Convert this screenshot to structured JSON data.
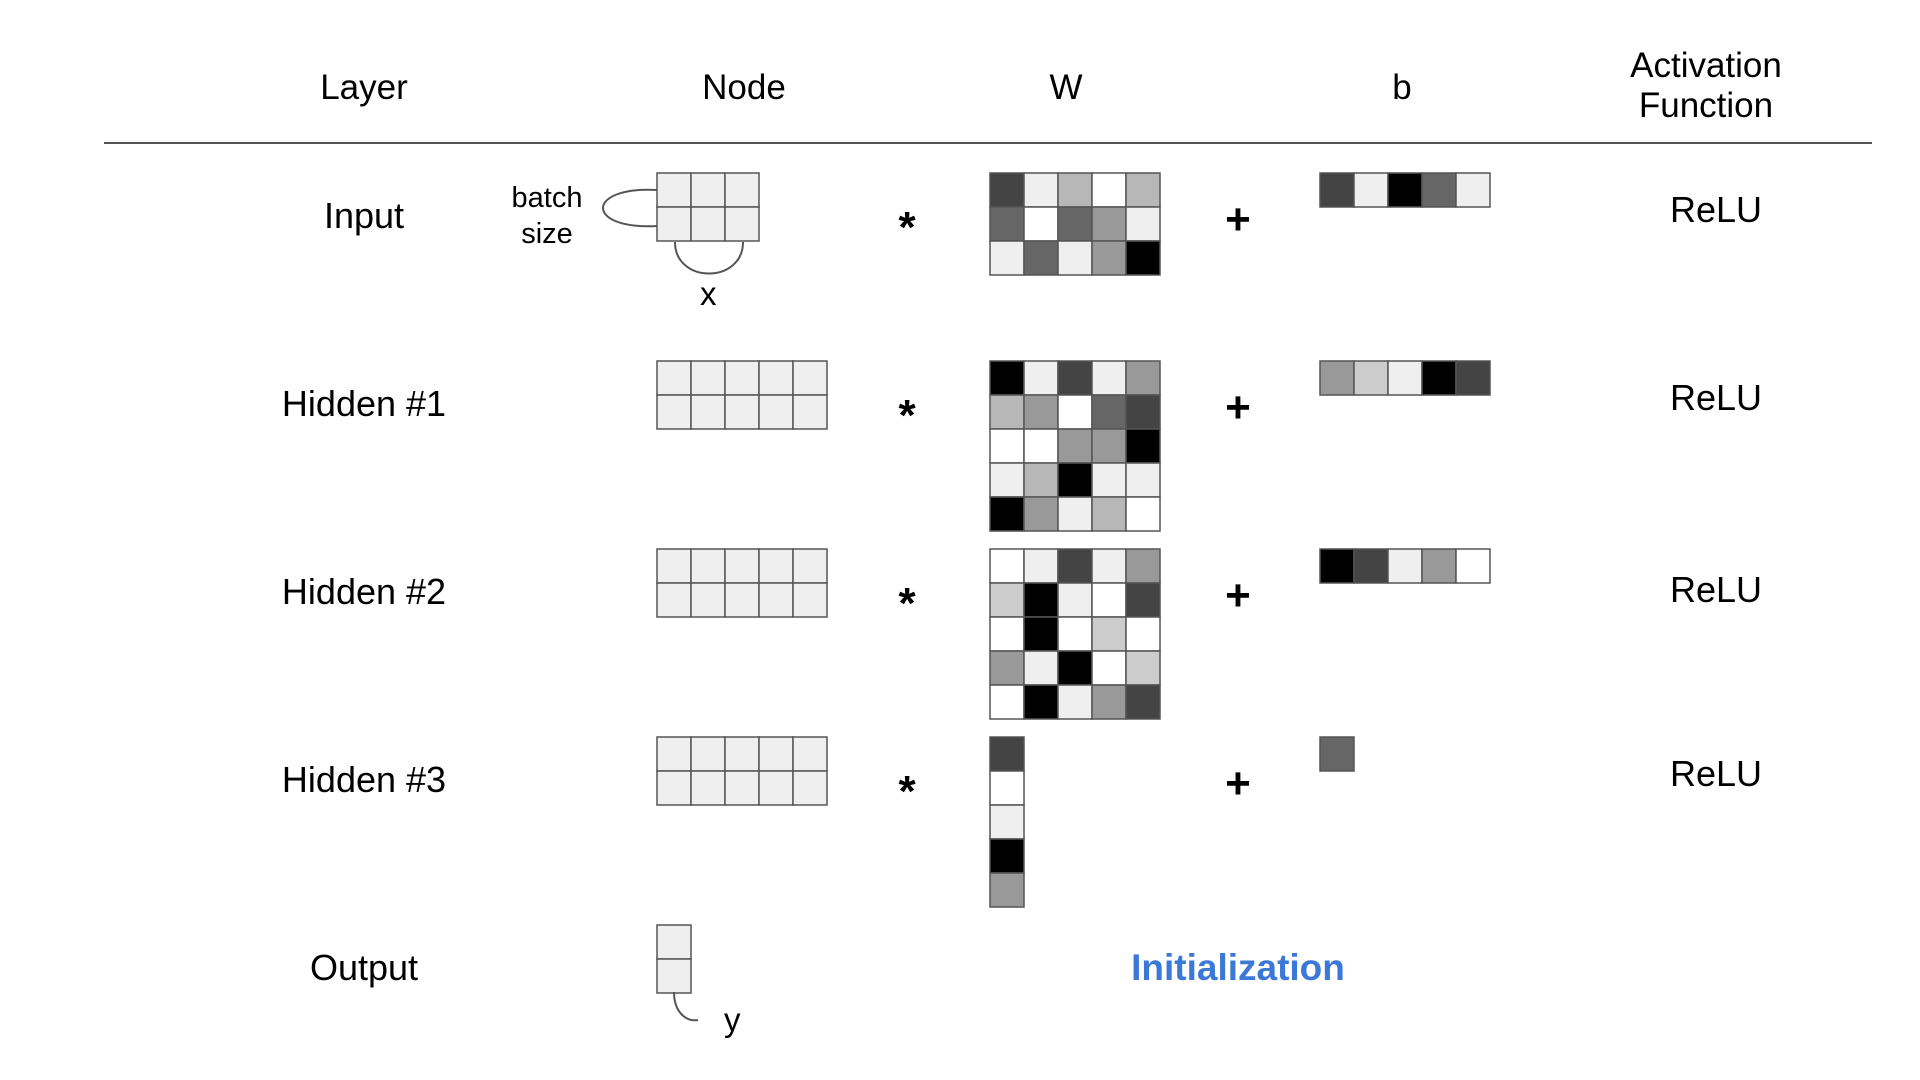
{
  "headers": {
    "layer": "Layer",
    "node": "Node",
    "w": "W",
    "b": "b",
    "activation_line1": "Activation",
    "activation_line2": "Function"
  },
  "input_annotations": {
    "batch_line1": "batch",
    "batch_line2": "size",
    "x": "x"
  },
  "output_annotation": {
    "y": "y"
  },
  "operators": {
    "multiply": "*",
    "add": "+"
  },
  "caption": "Initialization",
  "colors": {
    "caption": "#3b78d8",
    "grid_line": "#555555",
    "node_cell": "#efefef"
  },
  "layers": [
    {
      "name": "Input",
      "activation": "ReLU",
      "node_shape": [
        2,
        3
      ],
      "weights": [
        [
          "#444444",
          "#efefef",
          "#b7b7b7",
          "#ffffff",
          "#b7b7b7"
        ],
        [
          "#666666",
          "#ffffff",
          "#666666",
          "#999999",
          "#efefef"
        ],
        [
          "#efefef",
          "#666666",
          "#efefef",
          "#999999",
          "#000000"
        ]
      ],
      "bias": [
        "#444444",
        "#efefef",
        "#000000",
        "#666666",
        "#efefef"
      ]
    },
    {
      "name": "Hidden #1",
      "activation": "ReLU",
      "node_shape": [
        2,
        5
      ],
      "weights": [
        [
          "#000000",
          "#efefef",
          "#444444",
          "#efefef",
          "#999999"
        ],
        [
          "#b7b7b7",
          "#999999",
          "#ffffff",
          "#666666",
          "#444444"
        ],
        [
          "#ffffff",
          "#ffffff",
          "#999999",
          "#999999",
          "#000000"
        ],
        [
          "#efefef",
          "#b7b7b7",
          "#000000",
          "#efefef",
          "#efefef"
        ],
        [
          "#000000",
          "#999999",
          "#efefef",
          "#b7b7b7",
          "#ffffff"
        ]
      ],
      "bias": [
        "#999999",
        "#cccccc",
        "#efefef",
        "#000000",
        "#444444"
      ]
    },
    {
      "name": "Hidden #2",
      "activation": "ReLU",
      "node_shape": [
        2,
        5
      ],
      "weights": [
        [
          "#ffffff",
          "#efefef",
          "#444444",
          "#efefef",
          "#999999"
        ],
        [
          "#cccccc",
          "#000000",
          "#efefef",
          "#ffffff",
          "#444444"
        ],
        [
          "#ffffff",
          "#000000",
          "#ffffff",
          "#cccccc",
          "#ffffff"
        ],
        [
          "#999999",
          "#efefef",
          "#000000",
          "#ffffff",
          "#cccccc"
        ],
        [
          "#ffffff",
          "#000000",
          "#efefef",
          "#999999",
          "#444444"
        ]
      ],
      "bias": [
        "#000000",
        "#444444",
        "#efefef",
        "#999999",
        "#ffffff"
      ]
    },
    {
      "name": "Hidden #3",
      "activation": "ReLU",
      "node_shape": [
        2,
        5
      ],
      "weights": [
        [
          "#444444"
        ],
        [
          "#ffffff"
        ],
        [
          "#efefef"
        ],
        [
          "#000000"
        ],
        [
          "#999999"
        ]
      ],
      "bias": [
        "#666666"
      ]
    },
    {
      "name": "Output",
      "node_shape": [
        2,
        1
      ]
    }
  ]
}
